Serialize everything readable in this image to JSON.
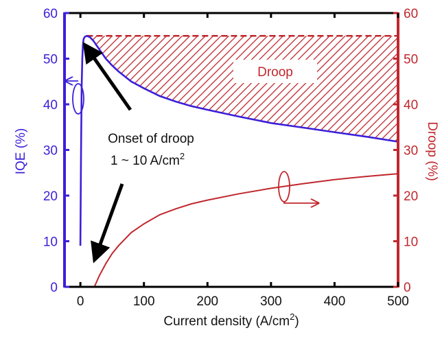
{
  "chart_data": {
    "type": "line",
    "xlabel": "Current density (A/cm",
    "xlabel_sup": "2",
    "xlabel_end": ")",
    "ylabel_left": "IQE (%)",
    "ylabel_right": "Droop (%)",
    "xlim": [
      -25,
      500
    ],
    "ylim_left": [
      0,
      60
    ],
    "ylim_right": [
      0,
      60
    ],
    "x_ticks": [
      0,
      100,
      200,
      300,
      400,
      500
    ],
    "y_ticks_left": [
      0,
      10,
      20,
      30,
      40,
      50,
      60
    ],
    "y_ticks_right": [
      0,
      10,
      20,
      30,
      40,
      50,
      60
    ],
    "grid": false,
    "colors": {
      "iqe": "#3b1fd9",
      "droop": "#c0272d",
      "frame": "#000000"
    },
    "series": [
      {
        "axis": "left",
        "color": "#3b1fd9",
        "x": [
          0,
          1,
          2,
          3,
          4,
          5,
          7,
          10,
          15,
          20,
          30,
          40,
          50,
          60,
          80,
          100,
          125,
          150,
          175,
          200,
          250,
          300,
          350,
          400,
          450,
          500
        ],
        "y": [
          9,
          30,
          44,
          50,
          53,
          54.3,
          54.8,
          55,
          54.7,
          54,
          52,
          50,
          48.5,
          47.2,
          45,
          43.5,
          41.8,
          40.6,
          39.6,
          38.8,
          37.3,
          35.9,
          34.9,
          33.9,
          32.9,
          31.8
        ]
      },
      {
        "axis": "right",
        "color": "#c0272d",
        "x": [
          22,
          30,
          40,
          50,
          60,
          80,
          100,
          125,
          150,
          175,
          200,
          250,
          300,
          350,
          400,
          450,
          500
        ],
        "y": [
          0,
          2.5,
          5.1,
          7.3,
          9.0,
          11.9,
          13.8,
          15.8,
          17.1,
          18.2,
          19.0,
          20.4,
          21.6,
          22.6,
          23.5,
          24.2,
          24.8
        ]
      }
    ],
    "droop_region": {
      "label": "Droop",
      "ceiling_iqe": 55,
      "x_start": 10,
      "x_end": 500
    },
    "annotation": {
      "line1": "Onset of droop",
      "line2": "1 ~ 10 A/cm",
      "line2_sup": "2"
    }
  }
}
